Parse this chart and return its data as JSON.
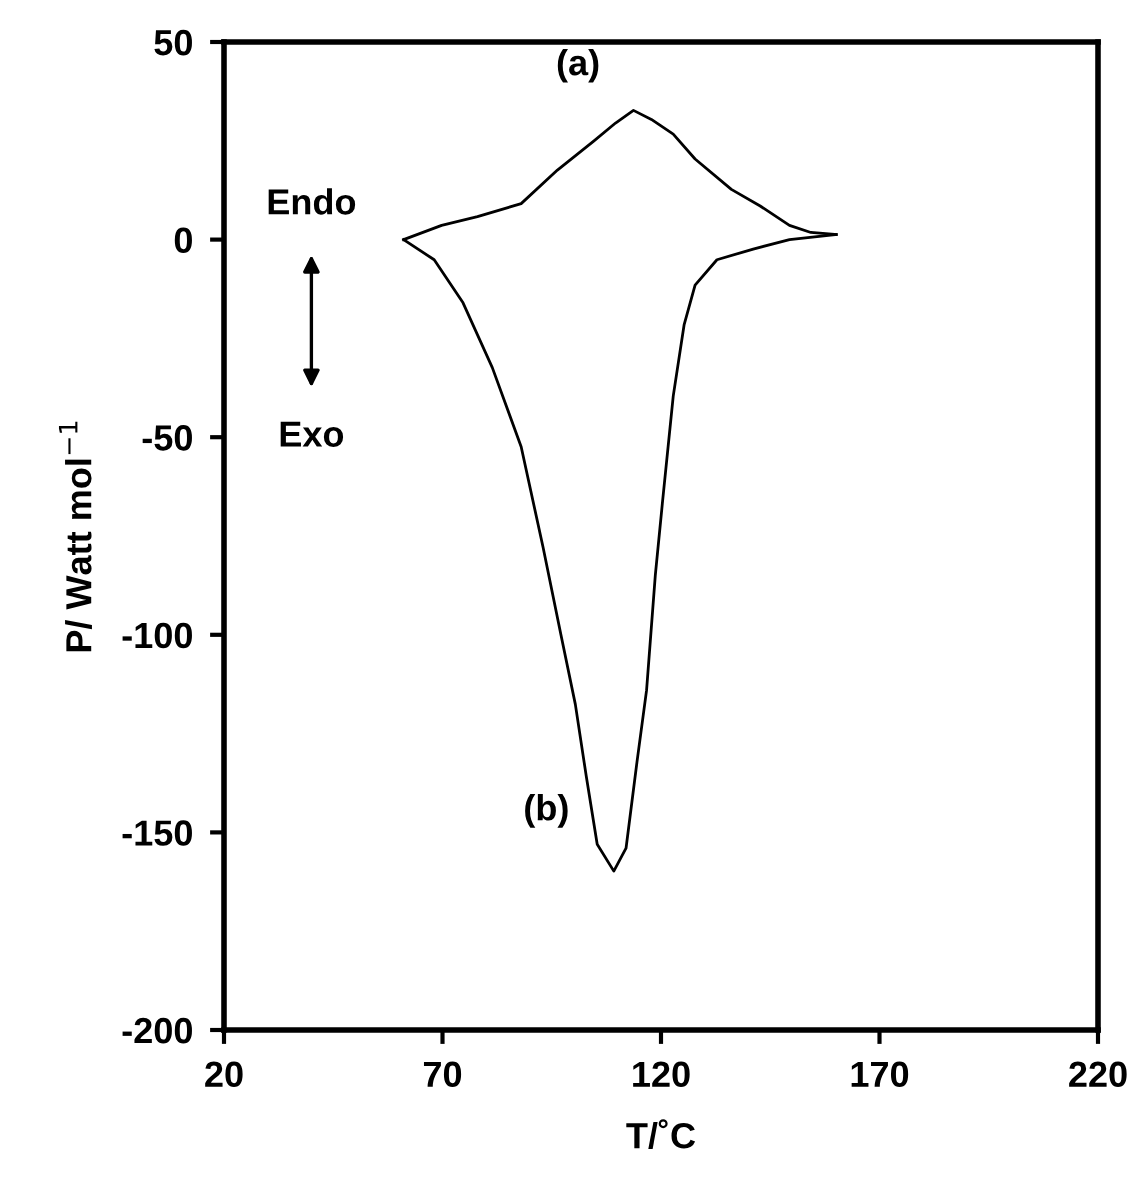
{
  "chart_data": {
    "type": "line",
    "xlabel": "T/˚C",
    "ylabel": "P/ Watt mol$^{−1}$",
    "xlim": [
      20,
      220
    ],
    "xticks": [
      20,
      70,
      120,
      170,
      220
    ],
    "ylim": [
      -200,
      50
    ],
    "yticks": [
      -200,
      -150,
      -100,
      -50,
      0,
      50
    ],
    "grid": false,
    "legend": false,
    "marker": "none",
    "line_style": "solid",
    "series": [
      {
        "color": "#000000",
        "x": [
          61.1,
          69.8,
          78,
          88,
          96.3,
          104.6,
          109.6,
          113.7,
          117.8,
          122.8,
          127.8,
          136.1,
          142.7,
          149.4,
          154.3,
          160.1
        ],
        "values": [
          0,
          3.6,
          5.8,
          9.1,
          17.6,
          24.9,
          29.5,
          32.7,
          30.4,
          26.7,
          20.4,
          12.7,
          8.5,
          3.6,
          1.8,
          1.3
        ]
      },
      {
        "color": "#000000",
        "x": [
          61.1,
          68.1,
          74.7,
          81.4,
          88,
          93,
          97.1,
          100.4,
          102.9,
          105.4,
          109.2,
          112,
          114.5,
          116.7,
          118.7,
          120.3,
          122.8,
          125.3,
          127.8,
          132.8,
          141.1,
          149.4,
          160.1
        ],
        "values": [
          0,
          -5.1,
          -16,
          -32.4,
          -52.4,
          -77.8,
          -100,
          -117.6,
          -135.8,
          -153,
          -159.8,
          -154,
          -132.2,
          -114,
          -84.9,
          -66.9,
          -39.6,
          -21.5,
          -11.5,
          -5.1,
          -2.4,
          0,
          1.3
        ]
      }
    ],
    "annotations": [
      {
        "text": "(a)",
        "x": 113.7,
        "y": 32.7
      },
      {
        "text": "(b)",
        "x": 105.4,
        "y": -153
      },
      "Endo",
      "Exo"
    ]
  }
}
